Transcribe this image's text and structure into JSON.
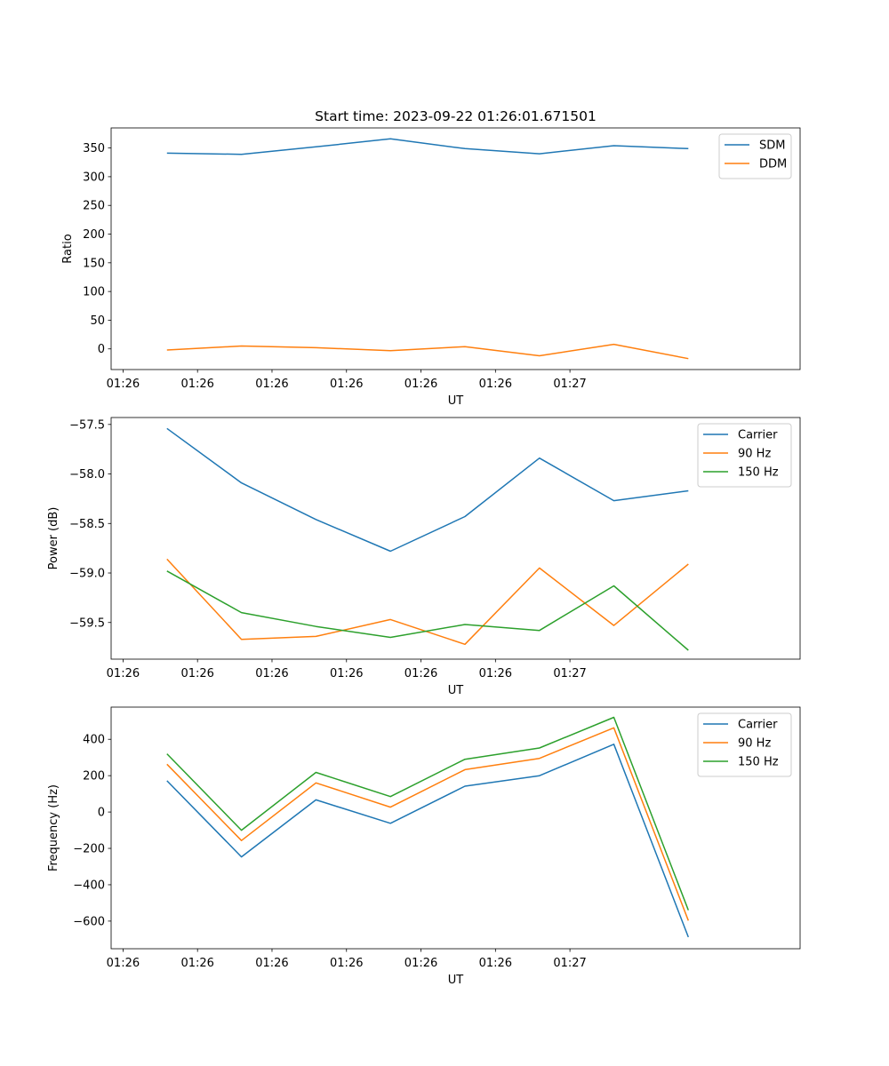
{
  "figure_title": "Start time: 2023-09-22 01:26:01.671501",
  "colors": {
    "series1": "#1f77b4",
    "series2": "#ff7f0e",
    "series3": "#2ca02c",
    "axis": "#000000",
    "legend_border": "#cccccc"
  },
  "chart_data": [
    {
      "type": "line",
      "title": "Start time: 2023-09-22 01:26:01.671501",
      "xlabel": "UT",
      "ylabel": "Ratio",
      "x_tick_labels": [
        "01:26",
        "01:26",
        "01:26",
        "01:26",
        "01:26",
        "01:26",
        "01:27"
      ],
      "x": [
        1,
        2,
        3,
        4,
        5,
        6,
        7,
        8
      ],
      "xlim": [
        0.25,
        9.5
      ],
      "ylim": [
        -36,
        385
      ],
      "yticks": [
        0,
        50,
        100,
        150,
        200,
        250,
        300,
        350
      ],
      "y_tick_labels": [
        "0",
        "50",
        "100",
        "150",
        "200",
        "250",
        "300",
        "350"
      ],
      "legend_position": "top-right",
      "series": [
        {
          "name": "SDM",
          "color": "#1f77b4",
          "values": [
            341,
            339,
            352,
            366,
            349,
            340,
            354,
            349
          ]
        },
        {
          "name": "DDM",
          "color": "#ff7f0e",
          "values": [
            -2,
            5,
            2,
            -3,
            4,
            -12,
            8,
            -17
          ]
        }
      ]
    },
    {
      "type": "line",
      "title": "",
      "xlabel": "UT",
      "ylabel": "Power (dB)",
      "x_tick_labels": [
        "01:26",
        "01:26",
        "01:26",
        "01:26",
        "01:26",
        "01:26",
        "01:27"
      ],
      "x": [
        1,
        2,
        3,
        4,
        5,
        6,
        7,
        8
      ],
      "xlim": [
        0.25,
        9.5
      ],
      "ylim": [
        -59.87,
        -57.43
      ],
      "yticks": [
        -59.5,
        -59.0,
        -58.5,
        -58.0,
        -57.5
      ],
      "y_tick_labels": [
        "−59.5",
        "−59.0",
        "−58.5",
        "−58.0",
        "−57.5"
      ],
      "legend_position": "top-right",
      "series": [
        {
          "name": "Carrier",
          "color": "#1f77b4",
          "values": [
            -57.54,
            -58.09,
            -58.46,
            -58.78,
            -58.43,
            -57.84,
            -58.27,
            -58.17
          ]
        },
        {
          "name": "90 Hz",
          "color": "#ff7f0e",
          "values": [
            -58.86,
            -59.67,
            -59.64,
            -59.47,
            -59.72,
            -58.95,
            -59.53,
            -58.91
          ]
        },
        {
          "name": "150 Hz",
          "color": "#2ca02c",
          "values": [
            -58.98,
            -59.4,
            -59.54,
            -59.65,
            -59.52,
            -59.58,
            -59.13,
            -59.78
          ]
        }
      ]
    },
    {
      "type": "line",
      "title": "",
      "xlabel": "UT",
      "ylabel": "Frequency (Hz)",
      "x_tick_labels": [
        "01:26",
        "01:26",
        "01:26",
        "01:26",
        "01:26",
        "01:26",
        "01:27"
      ],
      "x": [
        1,
        2,
        3,
        4,
        5,
        6,
        7,
        8
      ],
      "xlim": [
        0.25,
        9.5
      ],
      "ylim": [
        -752,
        577
      ],
      "yticks": [
        -600,
        -400,
        -200,
        0,
        200,
        400
      ],
      "y_tick_labels": [
        "−600",
        "−400",
        "−200",
        "0",
        "200",
        "400"
      ],
      "legend_position": "top-right",
      "series": [
        {
          "name": "Carrier",
          "color": "#1f77b4",
          "values": [
            172,
            -247,
            67,
            -62,
            142,
            200,
            373,
            -688
          ]
        },
        {
          "name": "90 Hz",
          "color": "#ff7f0e",
          "values": [
            263,
            -157,
            160,
            27,
            233,
            295,
            463,
            -597
          ]
        },
        {
          "name": "150 Hz",
          "color": "#2ca02c",
          "values": [
            320,
            -100,
            218,
            85,
            290,
            352,
            521,
            -540
          ]
        }
      ]
    }
  ]
}
